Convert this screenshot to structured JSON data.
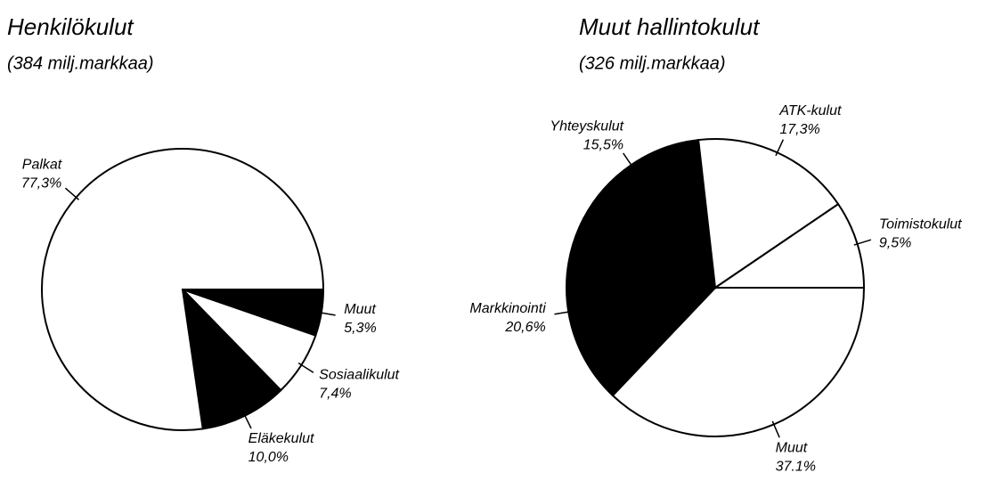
{
  "chart_data": [
    {
      "type": "pie",
      "title": "Henkilökulut",
      "subtitle": "(384 milj.markkaa)",
      "categories": [
        "Muut",
        "Sosiaalikulut",
        "Eläkekulut",
        "Palkat"
      ],
      "values": [
        5.3,
        7.4,
        10.0,
        77.3
      ],
      "value_labels": [
        "5,3%",
        "7,4%",
        "10,0%",
        "77,3%"
      ],
      "colors": [
        "#000000",
        "#ffffff",
        "#000000",
        "#ffffff"
      ]
    },
    {
      "type": "pie",
      "title": "Muut hallintokulut",
      "subtitle": "(326 milj.markkaa)",
      "categories": [
        "Muut",
        "Markkinointi",
        "Yhteyskulut",
        "ATK-kulut",
        "Toimistokulut"
      ],
      "values": [
        37.1,
        20.6,
        15.5,
        17.3,
        9.5
      ],
      "value_labels": [
        "37.1%",
        "20,6%",
        "15,5%",
        "17,3%",
        "9,5%"
      ],
      "colors": [
        "#ffffff",
        "#000000",
        "#000000",
        "#ffffff",
        "#ffffff"
      ]
    }
  ]
}
